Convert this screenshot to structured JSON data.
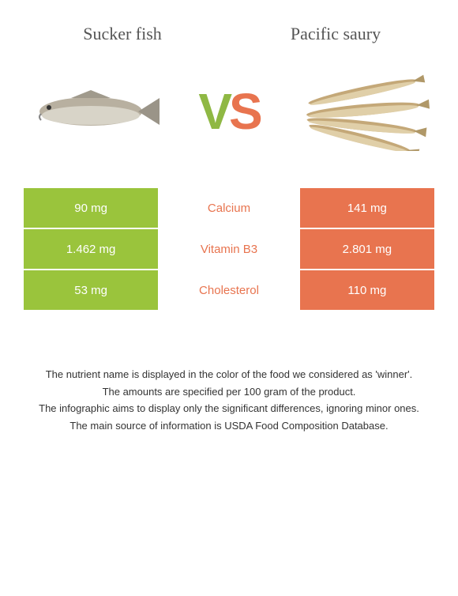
{
  "left_food": {
    "title": "Sucker fish",
    "color": "#9ac43c"
  },
  "right_food": {
    "title": "Pacific saury",
    "color": "#e8744f"
  },
  "vs": {
    "v_color": "#8fb844",
    "s_color": "#e8744f"
  },
  "nutrients": [
    {
      "name": "Calcium",
      "left": "90 mg",
      "right": "141 mg",
      "winner": "right"
    },
    {
      "name": "Vitamin B3",
      "left": "1.462 mg",
      "right": "2.801 mg",
      "winner": "right"
    },
    {
      "name": "Cholesterol",
      "left": "53 mg",
      "right": "110 mg",
      "winner": "right"
    }
  ],
  "notes": [
    "The nutrient name is displayed in the color of the food we considered as 'winner'.",
    "The amounts are specified per 100 gram of the product.",
    "The infographic aims to display only the significant differences, ignoring minor ones.",
    "The main source of information is USDA Food Composition Database."
  ]
}
